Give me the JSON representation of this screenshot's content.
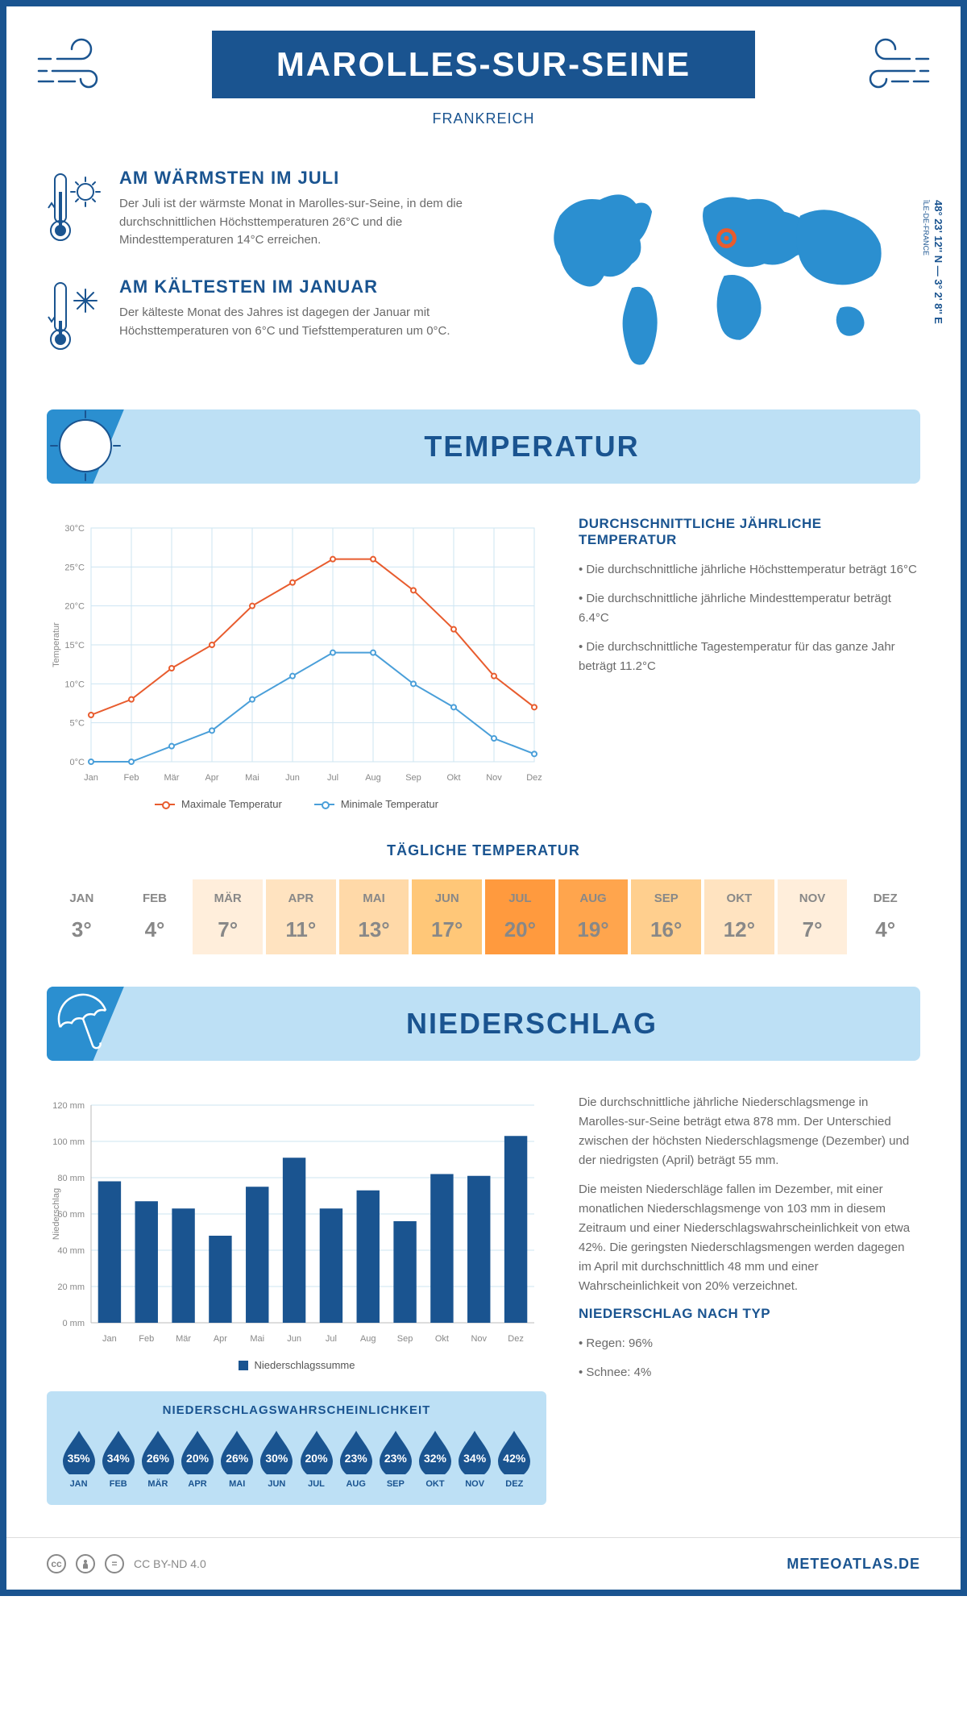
{
  "page": {
    "title": "MAROLLES-SUR-SEINE",
    "country": "FRANKREICH",
    "colors": {
      "primary": "#1a5490",
      "light_blue": "#bde0f5",
      "accent_blue": "#2b8fd0",
      "line_max": "#e85c2e",
      "line_min": "#4a9fd9",
      "grid": "#cde5f2",
      "text_gray": "#6a6a6a",
      "marker": "#e85c2e"
    }
  },
  "coords": {
    "lat": "48° 23' 12'' N",
    "lon": "3° 2' 8'' E",
    "region": "ÎLE-DE-FRANCE"
  },
  "facts": {
    "warm": {
      "heading": "AM WÄRMSTEN IM JULI",
      "body": "Der Juli ist der wärmste Monat in Marolles-sur-Seine, in dem die durchschnittlichen Höchsttemperaturen 26°C und die Mindesttemperaturen 14°C erreichen."
    },
    "cold": {
      "heading": "AM KÄLTESTEN IM JANUAR",
      "body": "Der kälteste Monat des Jahres ist dagegen der Januar mit Höchsttemperaturen von 6°C und Tiefsttemperaturen um 0°C."
    }
  },
  "temperature": {
    "section_title": "TEMPERATUR",
    "sidebar_heading": "DURCHSCHNITTLICHE JÄHRLICHE TEMPERATUR",
    "bullets": [
      "• Die durchschnittliche jährliche Höchsttemperatur beträgt 16°C",
      "• Die durchschnittliche jährliche Mindesttemperatur beträgt 6.4°C",
      "• Die durchschnittliche Tagestemperatur für das ganze Jahr beträgt 11.2°C"
    ],
    "chart": {
      "months": [
        "Jan",
        "Feb",
        "Mär",
        "Apr",
        "Mai",
        "Jun",
        "Jul",
        "Aug",
        "Sep",
        "Okt",
        "Nov",
        "Dez"
      ],
      "max": [
        6,
        8,
        12,
        15,
        20,
        23,
        26,
        26,
        22,
        17,
        11,
        7
      ],
      "min": [
        0,
        0,
        2,
        4,
        8,
        11,
        14,
        14,
        10,
        7,
        3,
        1
      ],
      "ylim": [
        0,
        30
      ],
      "ytick_step": 5,
      "y_unit": "°C",
      "ylabel": "Temperatur",
      "legend_max": "Maximale Temperatur",
      "legend_min": "Minimale Temperatur",
      "line_width": 2,
      "marker_radius": 3
    },
    "daily": {
      "title": "TÄGLICHE TEMPERATUR",
      "months": [
        "JAN",
        "FEB",
        "MÄR",
        "APR",
        "MAI",
        "JUN",
        "JUL",
        "AUG",
        "SEP",
        "OKT",
        "NOV",
        "DEZ"
      ],
      "values": [
        "3°",
        "4°",
        "7°",
        "11°",
        "13°",
        "17°",
        "20°",
        "19°",
        "16°",
        "12°",
        "7°",
        "4°"
      ],
      "colors": [
        "#ffffff",
        "#ffffff",
        "#ffeedb",
        "#ffe3c0",
        "#ffd9a8",
        "#ffc778",
        "#ff9a3e",
        "#ffa54d",
        "#ffcf8e",
        "#ffe3c0",
        "#ffeedb",
        "#ffffff"
      ]
    }
  },
  "precipitation": {
    "section_title": "NIEDERSCHLAG",
    "chart": {
      "months": [
        "Jan",
        "Feb",
        "Mär",
        "Apr",
        "Mai",
        "Jun",
        "Jul",
        "Aug",
        "Sep",
        "Okt",
        "Nov",
        "Dez"
      ],
      "values": [
        78,
        67,
        63,
        48,
        75,
        91,
        63,
        73,
        56,
        82,
        81,
        103
      ],
      "ylim": [
        0,
        120
      ],
      "ytick_step": 20,
      "y_unit": " mm",
      "ylabel": "Niederschlag",
      "bar_color": "#1a5490",
      "legend_label": "Niederschlagssumme"
    },
    "paragraphs": [
      "Die durchschnittliche jährliche Niederschlagsmenge in Marolles-sur-Seine beträgt etwa 878 mm. Der Unterschied zwischen der höchsten Niederschlagsmenge (Dezember) und der niedrigsten (April) beträgt 55 mm.",
      "Die meisten Niederschläge fallen im Dezember, mit einer monatlichen Niederschlagsmenge von 103 mm in diesem Zeitraum und einer Niederschlagswahrscheinlichkeit von etwa 42%. Die geringsten Niederschlagsmengen werden dagegen im April mit durchschnittlich 48 mm und einer Wahrscheinlichkeit von 20% verzeichnet."
    ],
    "by_type_heading": "NIEDERSCHLAG NACH TYP",
    "by_type": [
      "• Regen: 96%",
      "• Schnee: 4%"
    ],
    "probability": {
      "title": "NIEDERSCHLAGSWAHRSCHEINLICHKEIT",
      "months": [
        "JAN",
        "FEB",
        "MÄR",
        "APR",
        "MAI",
        "JUN",
        "JUL",
        "AUG",
        "SEP",
        "OKT",
        "NOV",
        "DEZ"
      ],
      "values": [
        "35%",
        "34%",
        "26%",
        "20%",
        "26%",
        "30%",
        "20%",
        "23%",
        "23%",
        "32%",
        "34%",
        "42%"
      ]
    }
  },
  "footer": {
    "license": "CC BY-ND 4.0",
    "site": "METEOATLAS.DE"
  }
}
